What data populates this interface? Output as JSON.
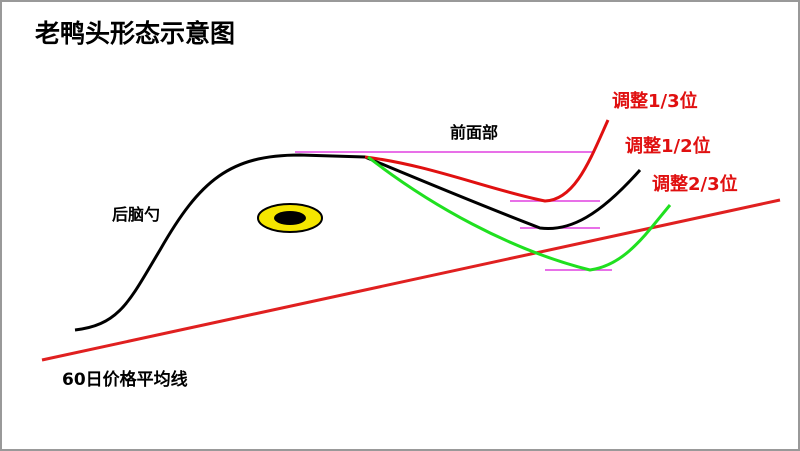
{
  "title": "老鸭头形态示意图",
  "labels": {
    "front": "前面部",
    "back": "后脑勺",
    "ma": "60日价格平均线"
  },
  "adjustments": [
    "调整1/3位",
    "调整1/2位",
    "调整2/3位"
  ]
}
